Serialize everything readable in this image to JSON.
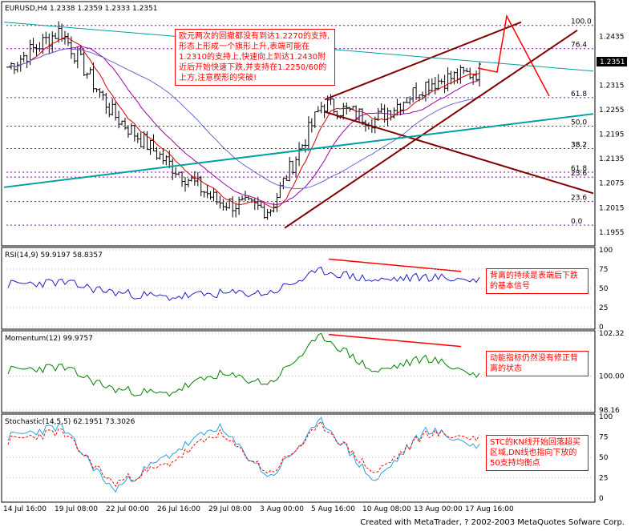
{
  "main": {
    "header": "EURUSD,H4  1.2338 1.2359 1.2333 1.2351",
    "current_price": "1.2351",
    "y_ticks": [
      "1.2435",
      "1.2375",
      "1.2315",
      "1.2255",
      "1.2195",
      "1.2135",
      "1.2075",
      "1.2015",
      "1.1955"
    ],
    "ylim": [
      1.1935,
      1.2485
    ],
    "fib_top_labels": [
      "100.0",
      "76.4",
      "61.8",
      "50.0",
      "38.2"
    ],
    "fib_bottom_labels": [
      "38.2",
      "61.8",
      "23.6",
      "23.6",
      "0.0"
    ],
    "note": "欧元两次的回撤都没有到达1.2270的支持,形态上形成一个旗形上升,表端可能在1.2310的支持上,快速向上到达1.2430附近后开始快速下跌,并支持在1.2250/60的上方,注意楔形的突破!"
  },
  "rsi": {
    "header": "RSI(14,9)  59.9197  58.8357",
    "y_ticks": [
      "100",
      "75",
      "50",
      "25",
      "0"
    ],
    "ylim": [
      0,
      100
    ],
    "note": "背离的持续是表端后下跌的基本信号"
  },
  "momentum": {
    "header": "Momentum(12)  99.9757",
    "y_ticks": [
      "102.32",
      "100.00",
      "98.16"
    ],
    "ylim": [
      98.16,
      102.32
    ],
    "note": "动能指标仍然没有修正背离的状态"
  },
  "stochastic": {
    "header": "Stochastic(14,5,5)  62.1951  73.3026",
    "y_ticks": [
      "100",
      "75",
      "50",
      "25",
      "0"
    ],
    "ylim": [
      0,
      100
    ],
    "note": "STC的KN线开始回落超买区域,DN线也指向下放的50支持均衡点"
  },
  "x_labels": [
    "14 Jul 16:00",
    "19 Jul 08:00",
    "22 Jul 00:00",
    "26 Jul 16:00",
    "29 Jul 08:00",
    "3 Aug 00:00",
    "5 Aug 16:00",
    "10 Aug 08:00",
    "13 Aug 00:00",
    "17 Aug 16:00"
  ],
  "footer": "Created with MetaTrader, ? 2002-2003 MetaQuotes Sofware Corp.",
  "colors": {
    "price_bars": "#000000",
    "trend_lines": "#800000",
    "teal_line": "#00a0a0",
    "ma_red": "#d00000",
    "ma_blue": "#6a6ad0",
    "ma_purple": "#a000a0",
    "fib_dotted": "#9000c0",
    "rsi_line": "#2020c0",
    "momentum_line": "#008000",
    "stoch_k": "#2aa0e0",
    "stoch_d": "#ff0000",
    "annotation": "#ff0000"
  },
  "chart_data": [
    {
      "type": "candlestick",
      "title": "EURUSD,H4",
      "ylim": [
        1.1935,
        1.2485
      ],
      "x_categories": [
        "14 Jul 16:00",
        "19 Jul 08:00",
        "22 Jul 00:00",
        "26 Jul 16:00",
        "29 Jul 08:00",
        "3 Aug 00:00",
        "5 Aug 16:00",
        "10 Aug 08:00",
        "13 Aug 00:00",
        "17 Aug 16:00"
      ],
      "close_approx": [
        1.236,
        1.245,
        1.2245,
        1.213,
        1.203,
        1.201,
        1.227,
        1.223,
        1.232,
        1.235
      ]
    },
    {
      "type": "line",
      "title": "RSI(14,9)",
      "ylim": [
        0,
        100
      ],
      "x_categories": [
        "14 Jul 16:00",
        "19 Jul 08:00",
        "22 Jul 00:00",
        "26 Jul 16:00",
        "29 Jul 08:00",
        "3 Aug 00:00",
        "5 Aug 16:00",
        "10 Aug 08:00",
        "13 Aug 00:00",
        "17 Aug 16:00"
      ],
      "series": [
        {
          "name": "RSI(14,9)",
          "values": [
            55,
            58,
            45,
            38,
            43,
            44,
            73,
            60,
            65,
            60
          ]
        }
      ]
    },
    {
      "type": "line",
      "title": "Momentum(12)",
      "ylim": [
        98.16,
        102.32
      ],
      "x_categories": [
        "14 Jul 16:00",
        "19 Jul 08:00",
        "22 Jul 00:00",
        "26 Jul 16:00",
        "29 Jul 08:00",
        "3 Aug 00:00",
        "5 Aug 16:00",
        "10 Aug 08:00",
        "13 Aug 00:00",
        "17 Aug 16:00"
      ],
      "series": [
        {
          "name": "Momentum(12)",
          "values": [
            100.3,
            100.5,
            99.3,
            99.0,
            100.1,
            99.6,
            102.2,
            100.2,
            101.0,
            99.98
          ]
        }
      ]
    },
    {
      "type": "line",
      "title": "Stochastic(14,5,5)",
      "ylim": [
        0,
        100
      ],
      "x_categories": [
        "14 Jul 16:00",
        "19 Jul 08:00",
        "22 Jul 00:00",
        "26 Jul 16:00",
        "29 Jul 08:00",
        "3 Aug 00:00",
        "5 Aug 16:00",
        "10 Aug 08:00",
        "13 Aug 00:00",
        "17 Aug 16:00"
      ],
      "series": [
        {
          "name": "%K",
          "values": [
            75,
            88,
            10,
            50,
            88,
            25,
            95,
            20,
            85,
            62
          ]
        },
        {
          "name": "%D",
          "values": [
            70,
            82,
            18,
            40,
            80,
            30,
            90,
            30,
            80,
            73
          ]
        }
      ]
    }
  ]
}
